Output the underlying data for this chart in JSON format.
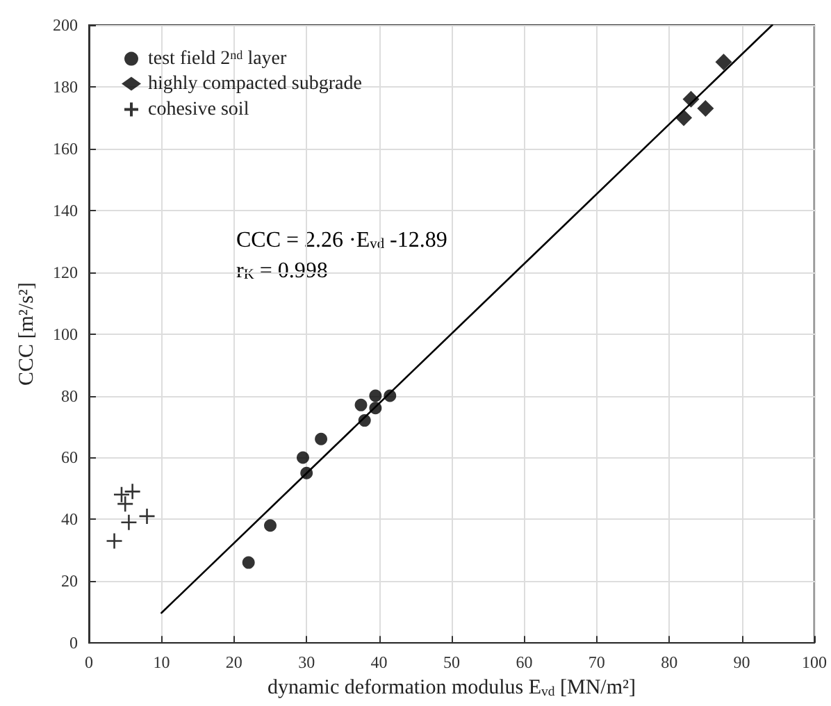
{
  "chart_data": {
    "type": "scatter",
    "xlabel": "dynamic deformation modulus E$_{vd}$ [MN/m²]",
    "ylabel": "CCC [m²/s²]",
    "annotations": [
      "CCC = 2.26 ·E$_{vd}$ -12.89",
      "r$_{K}$ = 0.998"
    ],
    "series": [
      {
        "name": "test field 2$^{nd}$ layer",
        "color": "#000000",
        "marker": "circle",
        "x": [
          22,
          25,
          29.5,
          30,
          32,
          37.5,
          38,
          39.5,
          39.5,
          41.5
        ],
        "values": [
          26,
          38,
          60,
          55,
          66,
          77,
          72,
          80,
          76,
          80
        ]
      },
      {
        "name": "highly compacted subgrade",
        "color": "#000000",
        "marker": "diamond",
        "x": [
          82,
          83,
          85,
          87.5
        ],
        "values": [
          170,
          176,
          173,
          188
        ]
      },
      {
        "name": "cohesive soil",
        "color": "#000000",
        "marker": "cross",
        "x": [
          3.5,
          4.5,
          5,
          6,
          5.5,
          8
        ],
        "values": [
          33,
          48,
          45,
          49,
          39,
          41
        ]
      },
      {
        "type": "line",
        "color": "#000000",
        "marker": "none",
        "line_style": "solid",
        "x": [
          10,
          94.2
        ],
        "values": [
          9.71,
          200
        ]
      }
    ],
    "xlim": [
      0,
      100
    ],
    "xticks": [
      0,
      10,
      20,
      30,
      40,
      50,
      60,
      70,
      80,
      90,
      100
    ],
    "ylim": [
      0,
      200
    ],
    "yticks": [
      0,
      20,
      40,
      60,
      80,
      100,
      120,
      140,
      160,
      180,
      200
    ],
    "grid": true,
    "legend": "top left"
  }
}
